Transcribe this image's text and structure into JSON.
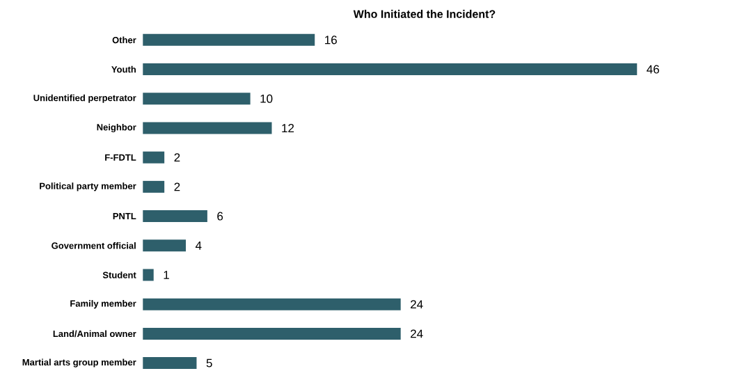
{
  "chart_data": {
    "type": "bar",
    "orientation": "horizontal",
    "title": "Who Initiated the Incident?",
    "categories": [
      "Other",
      "Youth",
      "Unidentified perpetrator",
      "Neighbor",
      "F-FDTL",
      "Political party member",
      "PNTL",
      "Government official",
      "Student",
      "Family member",
      "Land/Animal owner",
      "Martial arts group member"
    ],
    "values": [
      16,
      46,
      10,
      12,
      2,
      2,
      6,
      4,
      1,
      24,
      24,
      5
    ],
    "color": "#2e5f6b",
    "data_labels": true
  }
}
